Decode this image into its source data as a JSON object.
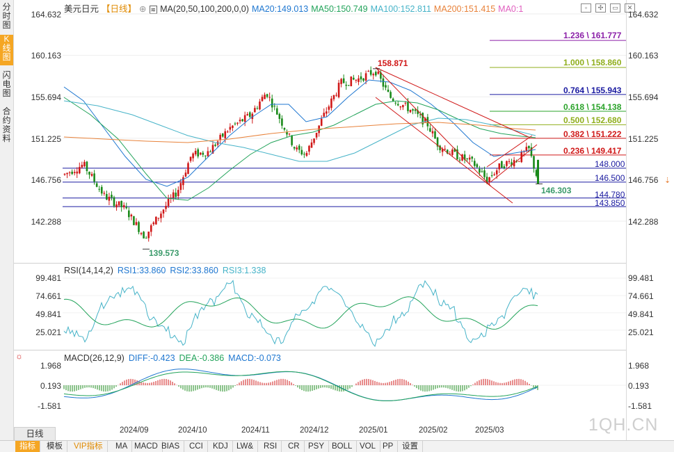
{
  "sidebar": {
    "tabs": [
      {
        "label": "分时图",
        "active": false
      },
      {
        "label": "K线图",
        "active": true
      },
      {
        "label": "闪电图",
        "active": false
      },
      {
        "label": "合约资料",
        "active": false
      }
    ]
  },
  "header": {
    "symbol": "美元日元",
    "period": "【日线】",
    "ma_label": "MA(20,50,100,200,0,0)",
    "ma20": "MA20:149.013",
    "ma50": "MA50:150.749",
    "ma100": "MA100:152.811",
    "ma200": "MA200:151.415",
    "ma0": "MA0:1"
  },
  "price_axis": {
    "labels": [
      "164.632",
      "160.163",
      "155.694",
      "151.225",
      "146.756",
      "142.288"
    ],
    "current": "146.756"
  },
  "fib_levels": [
    {
      "label": "1.236 \\ 161.777",
      "color": "#8b1fa8"
    },
    {
      "label": "1.000 \\ 158.860",
      "color": "#8fae1b"
    },
    {
      "label": "0.764 \\ 155.943",
      "color": "#1a1aa0"
    },
    {
      "label": "0.618 \\ 154.138",
      "color": "#2aa32a"
    },
    {
      "label": "0.500 \\ 152.680",
      "color": "#8fae1b"
    },
    {
      "label": "0.382 \\ 151.222",
      "color": "#d01818"
    },
    {
      "label": "0.236 \\ 149.417",
      "color": "#d01818"
    }
  ],
  "h_levels": [
    "148.000",
    "146.500",
    "144.780",
    "143.850"
  ],
  "annotations": {
    "high": "158.871",
    "low": "139.573",
    "last": "146.303"
  },
  "rsi": {
    "title": "RSI(14,14,2)",
    "rsi1": "RSI1:33.860",
    "rsi2": "RSI2:33.860",
    "rsi3": "RSI3:1.338",
    "axis": [
      "99.481",
      "74.661",
      "49.841",
      "25.021"
    ]
  },
  "macd": {
    "title": "MACD(26,12,9)",
    "diff": "DIFF:-0.423",
    "dea": "DEA:-0.386",
    "macd": "MACD:-0.073",
    "axis": [
      "1.968",
      "0.193",
      "-1.581"
    ]
  },
  "dates": [
    "2024/09",
    "2024/10",
    "2024/11",
    "2024/12",
    "2025/01",
    "2025/02",
    "2025/03"
  ],
  "period_button": "日线",
  "bottom_tabs": [
    "指标",
    "模板",
    "VIP指标",
    "MA",
    "MACD",
    "BIAS",
    "CCI",
    "KDJ",
    "LW&",
    "RSI",
    "CR",
    "PSY",
    "BOLL",
    "VOL",
    "PP",
    "设置"
  ],
  "watermark": "1QH.CN",
  "colors": {
    "up": "#d01818",
    "down": "#1a8a1a",
    "ma20": "#1f77d0",
    "ma50": "#22a35a",
    "ma100": "#46b3c8",
    "ma200": "#e8823a"
  }
}
